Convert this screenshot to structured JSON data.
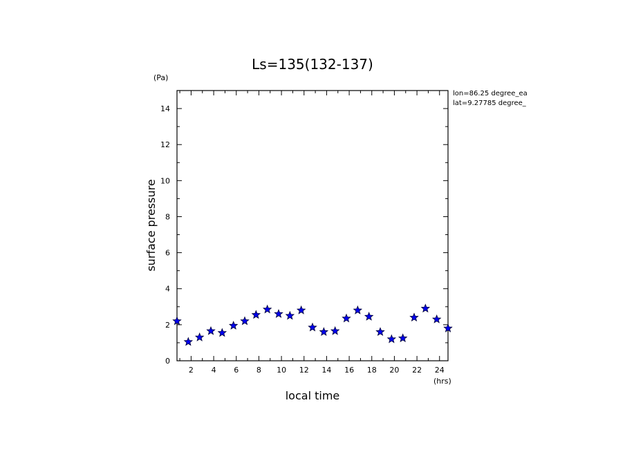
{
  "chart_data": {
    "type": "scatter",
    "title": "Ls=135(132-137)",
    "xlabel": "local time",
    "ylabel": "surface pressure",
    "x_unit": "(hrs)",
    "y_unit": "(Pa)",
    "annotations": [
      "lon=86.25 degree_ea",
      "lat=9.27785 degree_"
    ],
    "xlim": [
      0.75,
      24.75
    ],
    "ylim": [
      0,
      15
    ],
    "x_ticks": [
      2,
      4,
      6,
      8,
      10,
      12,
      14,
      16,
      18,
      20,
      22,
      24
    ],
    "y_ticks": [
      0,
      2,
      4,
      6,
      8,
      10,
      12,
      14
    ],
    "marker": "star",
    "marker_color": "#0000ee",
    "grid": false,
    "series": [
      {
        "x": [
          0.75,
          1.75,
          2.75,
          3.75,
          4.75,
          5.75,
          6.75,
          7.75,
          8.75,
          9.75,
          10.75,
          11.75,
          12.75,
          13.75,
          14.75,
          15.75,
          16.75,
          17.75,
          18.75,
          19.75,
          20.75,
          21.75,
          22.75,
          23.75,
          24.75
        ],
        "y": [
          2.2,
          1.05,
          1.3,
          1.65,
          1.55,
          1.95,
          2.2,
          2.55,
          2.85,
          2.6,
          2.5,
          2.8,
          1.85,
          1.6,
          1.65,
          2.35,
          2.8,
          2.45,
          1.6,
          1.2,
          1.25,
          2.4,
          2.9,
          2.3,
          1.8
        ]
      }
    ]
  }
}
